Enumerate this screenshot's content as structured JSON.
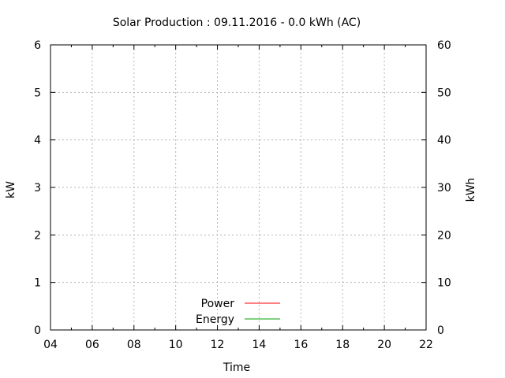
{
  "chart_data": {
    "type": "line",
    "title": "Solar Production : 09.11.2016 - 0.0 kWh (AC)",
    "xlabel": "Time",
    "ylabel": "kW",
    "y2label": "kWh",
    "xlim": [
      4,
      22
    ],
    "ylim": [
      0,
      6
    ],
    "y2lim": [
      0,
      60
    ],
    "x_ticks": [
      "04",
      "06",
      "08",
      "10",
      "12",
      "14",
      "16",
      "18",
      "20",
      "22"
    ],
    "y_ticks": [
      "0",
      "1",
      "2",
      "3",
      "4",
      "5",
      "6"
    ],
    "y2_ticks": [
      "0",
      "10",
      "20",
      "30",
      "40",
      "50",
      "60"
    ],
    "grid": true,
    "legend_position": "bottom-center",
    "series": [
      {
        "name": "Power",
        "color": "#ff0000",
        "axis": "y",
        "x": [],
        "values": []
      },
      {
        "name": "Energy",
        "color": "#00a000",
        "axis": "y2",
        "x": [],
        "values": []
      }
    ]
  }
}
